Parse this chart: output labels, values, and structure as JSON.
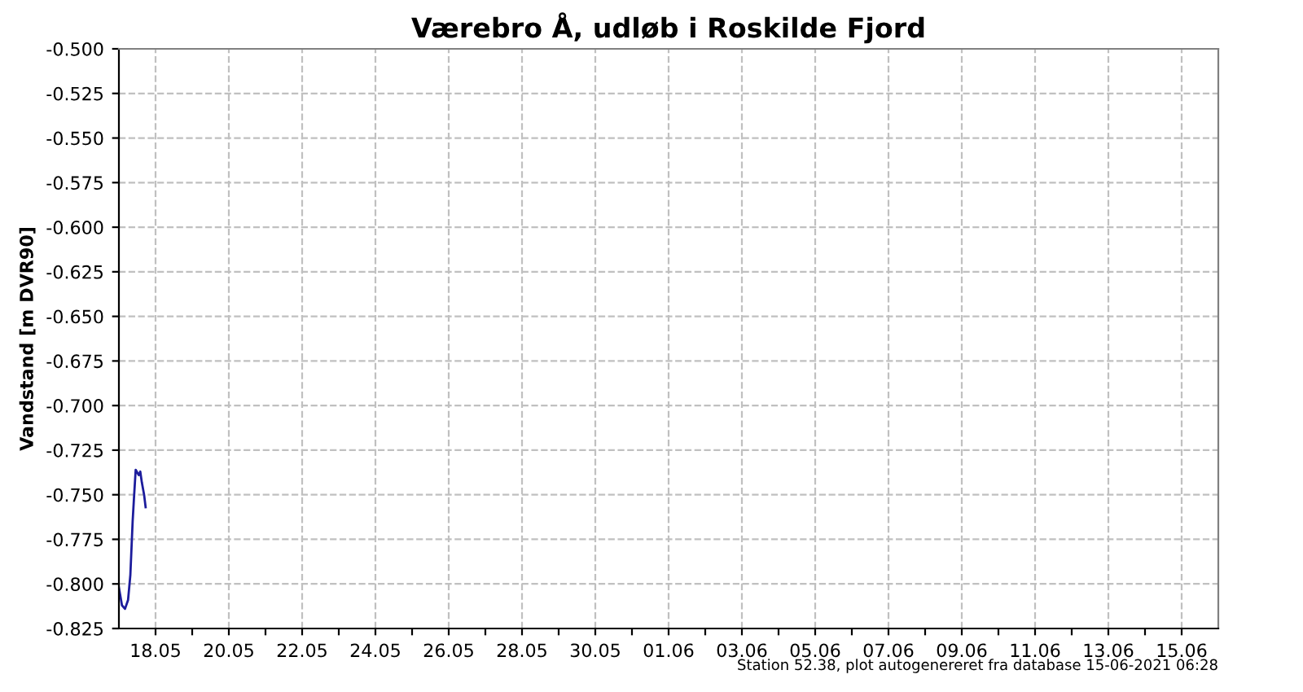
{
  "chart_data": {
    "type": "line",
    "title": "Værebro Å, udløb i Roskilde Fjord",
    "ylabel": "Vandstand [m DVR90]",
    "x": [
      "2021-05-17T00:00",
      "2021-05-17T01:00",
      "2021-05-17T02:00",
      "2021-05-17T04:00",
      "2021-05-17T06:00",
      "2021-05-17T07:30",
      "2021-05-17T09:00",
      "2021-05-17T10:00",
      "2021-05-17T11:00",
      "2021-05-17T13:00",
      "2021-05-17T14:00",
      "2021-05-17T15:00",
      "2021-05-17T16:30",
      "2021-05-17T17:30"
    ],
    "series": [
      {
        "color": "#1c1c9c",
        "values": [
          -0.802,
          -0.807,
          -0.812,
          -0.814,
          -0.809,
          -0.795,
          -0.765,
          -0.75,
          -0.736,
          -0.739,
          -0.737,
          -0.743,
          -0.75,
          -0.757
        ]
      }
    ],
    "xlim": [
      "2021-05-17",
      "2021-06-16"
    ],
    "xticks": [
      {
        "value": "2021-05-18",
        "label": "18.05"
      },
      {
        "value": "2021-05-19",
        "label": null
      },
      {
        "value": "2021-05-20",
        "label": "20.05"
      },
      {
        "value": "2021-05-21",
        "label": null
      },
      {
        "value": "2021-05-22",
        "label": "22.05"
      },
      {
        "value": "2021-05-23",
        "label": null
      },
      {
        "value": "2021-05-24",
        "label": "24.05"
      },
      {
        "value": "2021-05-25",
        "label": null
      },
      {
        "value": "2021-05-26",
        "label": "26.05"
      },
      {
        "value": "2021-05-27",
        "label": null
      },
      {
        "value": "2021-05-28",
        "label": "28.05"
      },
      {
        "value": "2021-05-29",
        "label": null
      },
      {
        "value": "2021-05-30",
        "label": "30.05"
      },
      {
        "value": "2021-05-31",
        "label": null
      },
      {
        "value": "2021-06-01",
        "label": "01.06"
      },
      {
        "value": "2021-06-02",
        "label": null
      },
      {
        "value": "2021-06-03",
        "label": "03.06"
      },
      {
        "value": "2021-06-04",
        "label": null
      },
      {
        "value": "2021-06-05",
        "label": "05.06"
      },
      {
        "value": "2021-06-06",
        "label": null
      },
      {
        "value": "2021-06-07",
        "label": "07.06"
      },
      {
        "value": "2021-06-08",
        "label": null
      },
      {
        "value": "2021-06-09",
        "label": "09.06"
      },
      {
        "value": "2021-06-10",
        "label": null
      },
      {
        "value": "2021-06-11",
        "label": "11.06"
      },
      {
        "value": "2021-06-12",
        "label": null
      },
      {
        "value": "2021-06-13",
        "label": "13.06"
      },
      {
        "value": "2021-06-14",
        "label": null
      },
      {
        "value": "2021-06-15",
        "label": "15.06"
      }
    ],
    "ylim": [
      -0.825,
      -0.5
    ],
    "yticks": [
      {
        "value": -0.825,
        "label": "-0.825"
      },
      {
        "value": -0.8,
        "label": "-0.800"
      },
      {
        "value": -0.775,
        "label": "-0.775"
      },
      {
        "value": -0.75,
        "label": "-0.750"
      },
      {
        "value": -0.725,
        "label": "-0.725"
      },
      {
        "value": -0.7,
        "label": "-0.700"
      },
      {
        "value": -0.675,
        "label": "-0.675"
      },
      {
        "value": -0.65,
        "label": "-0.650"
      },
      {
        "value": -0.625,
        "label": "-0.625"
      },
      {
        "value": -0.6,
        "label": "-0.600"
      },
      {
        "value": -0.575,
        "label": "-0.575"
      },
      {
        "value": -0.55,
        "label": "-0.550"
      },
      {
        "value": -0.525,
        "label": "-0.525"
      },
      {
        "value": -0.5,
        "label": "-0.500"
      }
    ],
    "grid": true,
    "annotations": [
      "Station 52.38, plot autogenereret fra database 15-06-2021 06:28"
    ]
  }
}
